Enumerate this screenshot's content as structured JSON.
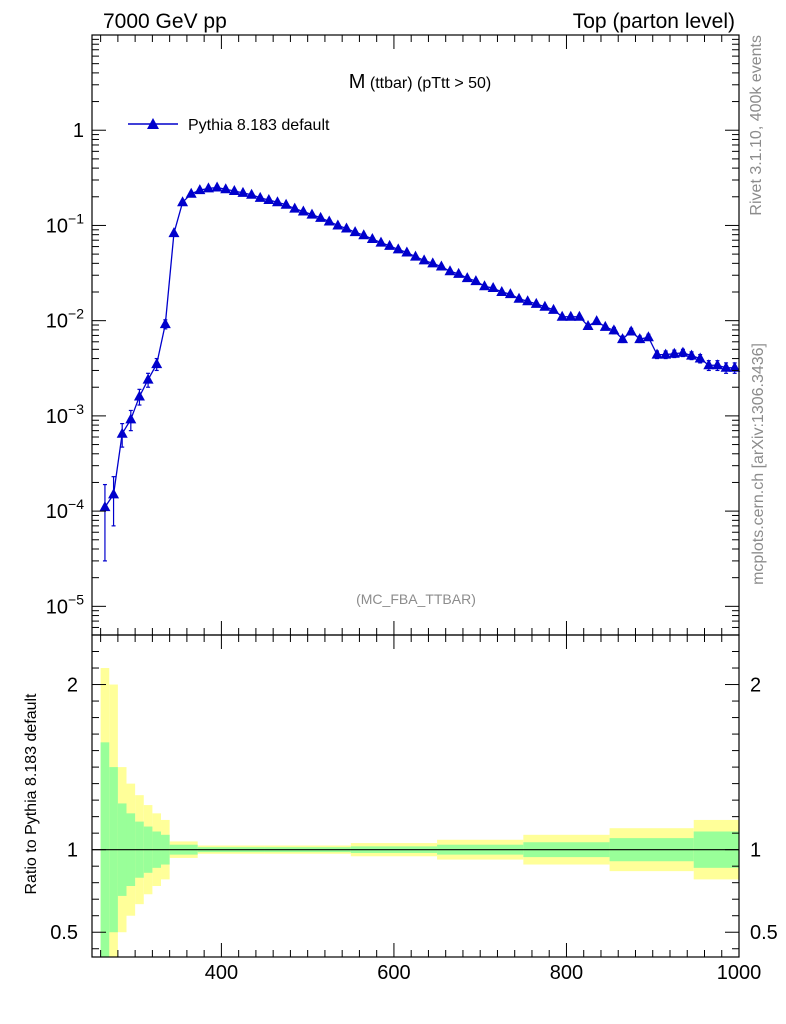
{
  "header": {
    "left": "7000 GeV pp",
    "right": "Top (parton level)"
  },
  "side_labels": {
    "rivet": "Rivet 3.1.10,  400k events",
    "mcplots": "mcplots.cern.ch [arXiv:1306.3436]"
  },
  "plot_title": {
    "main": "M",
    "sub": " (ttbar) (pTtt > 50)"
  },
  "analysis_tag": "(MC_FBA_TTBAR)",
  "colors": {
    "line": "#0000cc",
    "band_yellow": "#ffff99",
    "band_green": "#99ff99",
    "reference": "#000000"
  },
  "chart_data": [
    {
      "type": "line",
      "panel": "main",
      "y_scale": "log",
      "xlim": [
        250,
        1000
      ],
      "ylim": [
        5e-06,
        10
      ],
      "x_ticks": [
        400,
        600,
        800,
        1000
      ],
      "y_ticks": [
        {
          "exp": 0,
          "label": "1"
        },
        {
          "exp": -1,
          "label": "10",
          "sup": "−1"
        },
        {
          "exp": -2,
          "label": "10",
          "sup": "−2"
        },
        {
          "exp": -3,
          "label": "10",
          "sup": "−3"
        },
        {
          "exp": -4,
          "label": "10",
          "sup": "−4"
        },
        {
          "exp": -5,
          "label": "10",
          "sup": "−5"
        }
      ],
      "legend": {
        "label": "Pythia 8.183 default",
        "position": "top-left"
      },
      "series": [
        {
          "name": "Pythia 8.183 default",
          "x": [
            265,
            275,
            285,
            295,
            305,
            315,
            325,
            335,
            345,
            355,
            365,
            375,
            385,
            395,
            405,
            415,
            425,
            435,
            445,
            455,
            465,
            475,
            485,
            495,
            505,
            515,
            525,
            535,
            545,
            555,
            565,
            575,
            585,
            595,
            605,
            615,
            625,
            635,
            645,
            655,
            665,
            675,
            685,
            695,
            705,
            715,
            725,
            735,
            745,
            755,
            765,
            775,
            785,
            795,
            805,
            815,
            825,
            835,
            845,
            855,
            865,
            875,
            885,
            895,
            905,
            915,
            925,
            935,
            945,
            955,
            965,
            975,
            985,
            995
          ],
          "y": [
            0.00011,
            0.00015,
            0.00065,
            0.00092,
            0.0016,
            0.0024,
            0.0035,
            0.0092,
            0.083,
            0.175,
            0.215,
            0.235,
            0.245,
            0.25,
            0.24,
            0.23,
            0.22,
            0.21,
            0.195,
            0.185,
            0.175,
            0.165,
            0.15,
            0.14,
            0.13,
            0.12,
            0.11,
            0.1,
            0.093,
            0.085,
            0.079,
            0.072,
            0.066,
            0.061,
            0.056,
            0.052,
            0.047,
            0.043,
            0.04,
            0.037,
            0.033,
            0.031,
            0.028,
            0.026,
            0.023,
            0.022,
            0.02,
            0.019,
            0.017,
            0.016,
            0.015,
            0.014,
            0.013,
            0.011,
            0.011,
            0.011,
            0.0088,
            0.0099,
            0.0086,
            0.0079,
            0.0064,
            0.0077,
            0.0064,
            0.0067,
            0.0044,
            0.0044,
            0.0045,
            0.0046,
            0.0043,
            0.004,
            0.0034,
            0.0034,
            0.0032,
            0.0032
          ],
          "y_err_up": [
            8e-05,
            8e-05,
            0.00018,
            0.00022,
            0.0003,
            0.0004,
            0.0005,
            0.001,
            0.004,
            0.005,
            0.005,
            0.005,
            0.005,
            0.005,
            0.005,
            0.005,
            0.005,
            0.005,
            0.004,
            0.004,
            0.004,
            0.004,
            0.003,
            0.003,
            0.003,
            0.003,
            0.003,
            0.002,
            0.002,
            0.002,
            0.002,
            0.002,
            0.002,
            0.002,
            0.002,
            0.002,
            0.001,
            0.001,
            0.001,
            0.001,
            0.001,
            0.001,
            0.001,
            0.001,
            0.001,
            0.001,
            0.001,
            0.001,
            0.0008,
            0.0008,
            0.0008,
            0.0008,
            0.0007,
            0.0007,
            0.0007,
            0.0007,
            0.0006,
            0.0006,
            0.0006,
            0.0006,
            0.0005,
            0.0006,
            0.0005,
            0.0005,
            0.0004,
            0.0004,
            0.0004,
            0.0004,
            0.0004,
            0.0004,
            0.0004,
            0.0004,
            0.0004,
            0.0004
          ]
        }
      ]
    },
    {
      "type": "area",
      "panel": "ratio",
      "ylabel": "Ratio to Pythia 8.183 default",
      "xlim": [
        250,
        1000
      ],
      "ylim": [
        0.35,
        2.3
      ],
      "x_ticks": [
        400,
        600,
        800,
        1000
      ],
      "y_ticks": [
        0.5,
        1,
        2
      ],
      "reference_line": 1,
      "bin_edges": [
        260,
        340,
        350,
        1000
      ],
      "bands": {
        "x": [
          265,
          275,
          285,
          295,
          305,
          315,
          325,
          335,
          345,
          400,
          500,
          600,
          700,
          800,
          900,
          995
        ],
        "green_hw": [
          0.65,
          0.5,
          0.28,
          0.22,
          0.17,
          0.14,
          0.11,
          0.09,
          0.03,
          0.015,
          0.015,
          0.02,
          0.03,
          0.045,
          0.07,
          0.11
        ],
        "yellow_hw": [
          1.1,
          1.0,
          0.5,
          0.4,
          0.33,
          0.27,
          0.22,
          0.18,
          0.05,
          0.025,
          0.025,
          0.04,
          0.06,
          0.09,
          0.13,
          0.18
        ]
      }
    }
  ]
}
